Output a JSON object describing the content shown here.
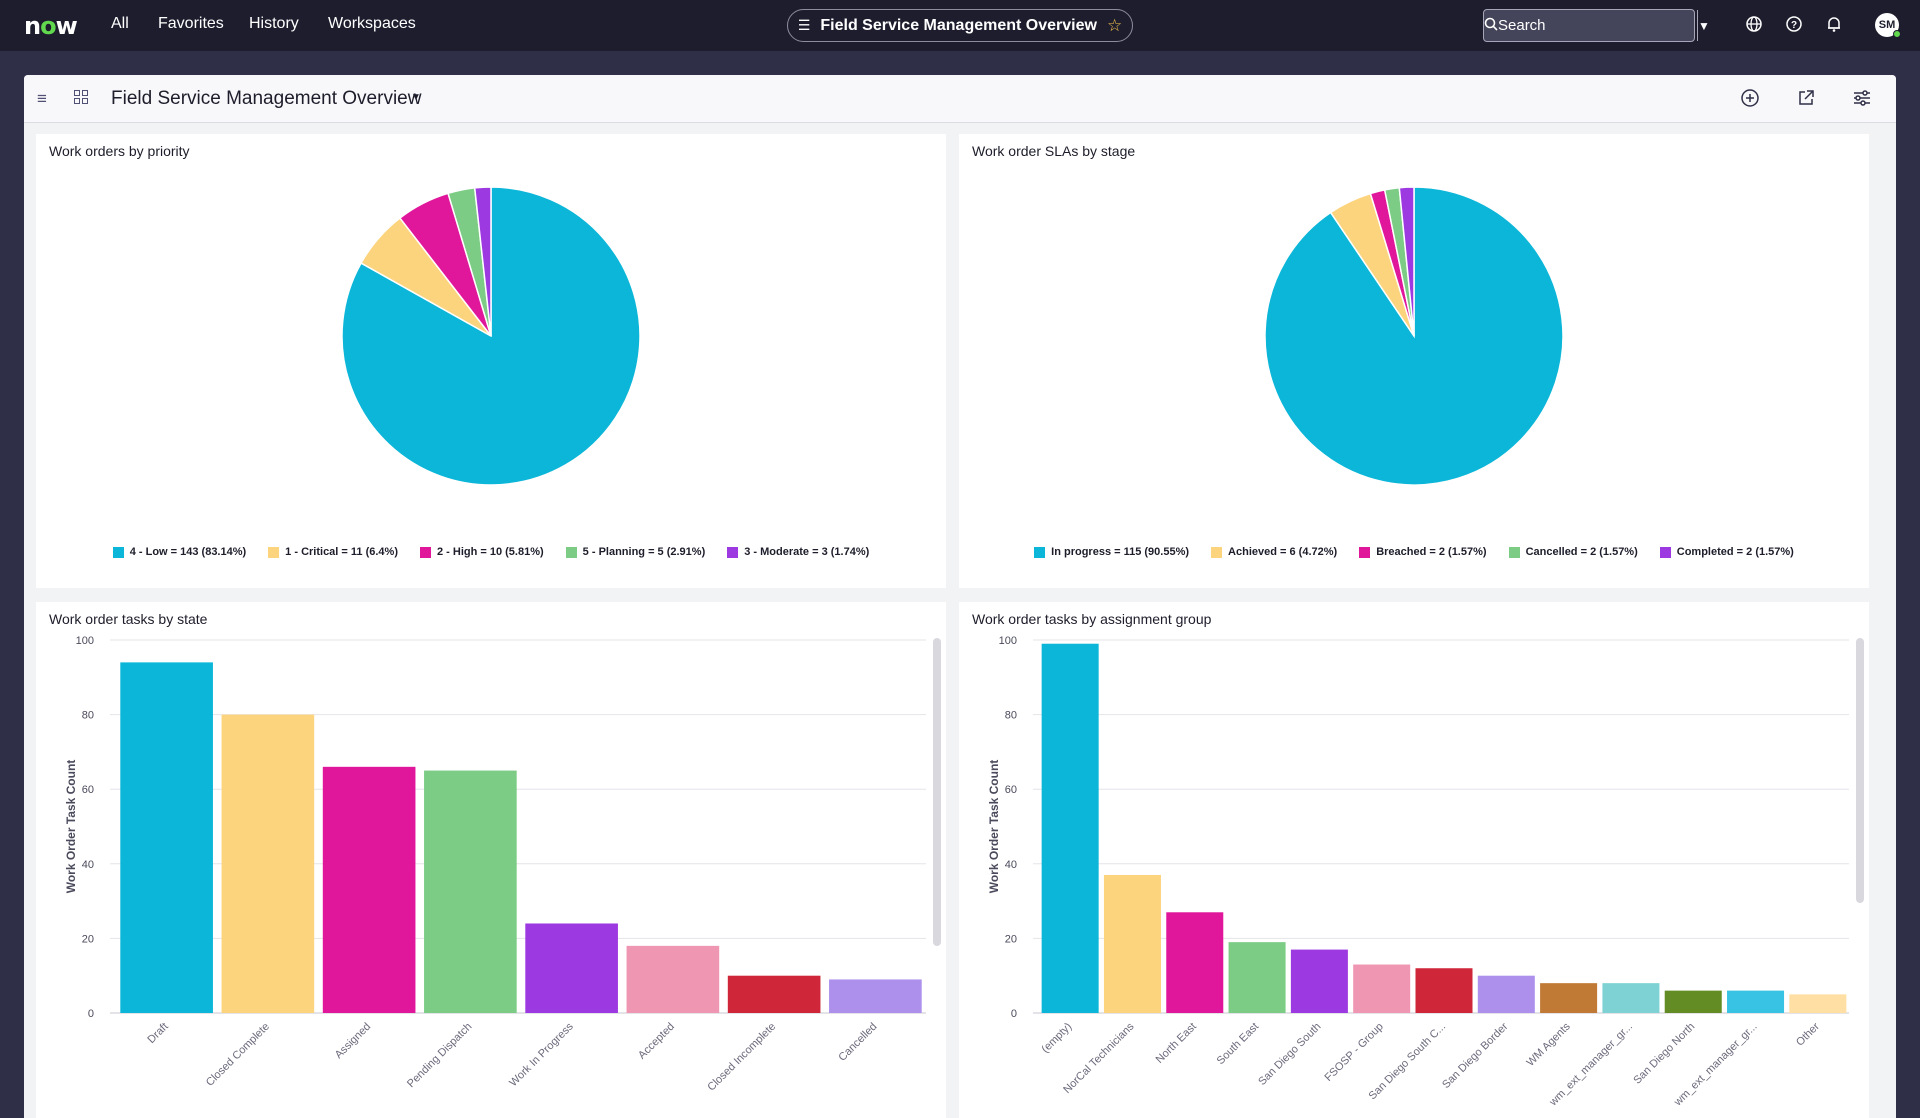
{
  "nav": {
    "logo": "now",
    "links": [
      "All",
      "Favorites",
      "History",
      "Workspaces"
    ],
    "workspace_title": "Field Service Management Overview",
    "search_placeholder": "Search",
    "user_initials": "SM"
  },
  "dashboard": {
    "title": "Field Service Management Overview"
  },
  "widgets": {
    "priority": {
      "title": "Work orders by priority",
      "legend": [
        "4 - Low = 143 (83.14%)",
        "1 - Critical = 11 (6.4%)",
        "2 - High = 10 (5.81%)",
        "5 - Planning = 5 (2.91%)",
        "3 - Moderate = 3 (1.74%)"
      ]
    },
    "slas": {
      "title": "Work order SLAs by stage",
      "legend": [
        "In progress = 115 (90.55%)",
        "Achieved = 6 (4.72%)",
        "Breached = 2 (1.57%)",
        "Cancelled = 2 (1.57%)",
        "Completed = 2 (1.57%)"
      ]
    },
    "tasks_state": {
      "title": "Work order tasks by state"
    },
    "tasks_group": {
      "title": "Work order tasks by assignment group"
    }
  },
  "colors": {
    "palette": [
      "#0bb6d8",
      "#fdd47e",
      "#e0179b",
      "#7ccc86",
      "#9d39e0",
      "#ef96b3",
      "#cf2639",
      "#ac90ec",
      "#c07a35",
      "#7ed2d4",
      "#638c24",
      "#38c2e4",
      "#ffdfa4"
    ]
  },
  "chart_data": [
    {
      "type": "pie",
      "title": "Work orders by priority",
      "labels": [
        "4 - Low",
        "1 - Critical",
        "2 - High",
        "5 - Planning",
        "3 - Moderate"
      ],
      "values": [
        143,
        11,
        10,
        5,
        3
      ],
      "percents": [
        83.14,
        6.4,
        5.81,
        2.91,
        1.74
      ],
      "legend_position": "bottom"
    },
    {
      "type": "pie",
      "title": "Work order SLAs by stage",
      "labels": [
        "In progress",
        "Achieved",
        "Breached",
        "Cancelled",
        "Completed"
      ],
      "values": [
        115,
        6,
        2,
        2,
        2
      ],
      "percents": [
        90.55,
        4.72,
        1.57,
        1.57,
        1.57
      ],
      "legend_position": "bottom"
    },
    {
      "type": "bar",
      "title": "Work order tasks by state",
      "ylabel": "Work Order Task Count",
      "categories": [
        "Draft",
        "Closed Complete",
        "Assigned",
        "Pending Dispatch",
        "Work In Progress",
        "Accepted",
        "Closed Incomplete",
        "Cancelled"
      ],
      "values": [
        94,
        80,
        66,
        65,
        24,
        18,
        10,
        9
      ],
      "ylim": [
        0,
        100
      ],
      "yticks": [
        0,
        20,
        40,
        60,
        80,
        100
      ],
      "grid": true
    },
    {
      "type": "bar",
      "title": "Work order tasks by assignment group",
      "ylabel": "Work Order Task Count",
      "categories": [
        "(empty)",
        "NorCal Technicians",
        "North East",
        "South East",
        "San Diego South",
        "FSOSP - Group",
        "San Diego South C...",
        "San Diego Border",
        "WM Agents",
        "wm_ext_manager_gr...",
        "San Diego North",
        "wm_ext_manager_gr...",
        "Other"
      ],
      "values": [
        99,
        37,
        27,
        19,
        17,
        13,
        12,
        10,
        8,
        8,
        6,
        6,
        5
      ],
      "ylim": [
        0,
        100
      ],
      "yticks": [
        0,
        20,
        40,
        60,
        80,
        100
      ],
      "grid": true
    }
  ]
}
